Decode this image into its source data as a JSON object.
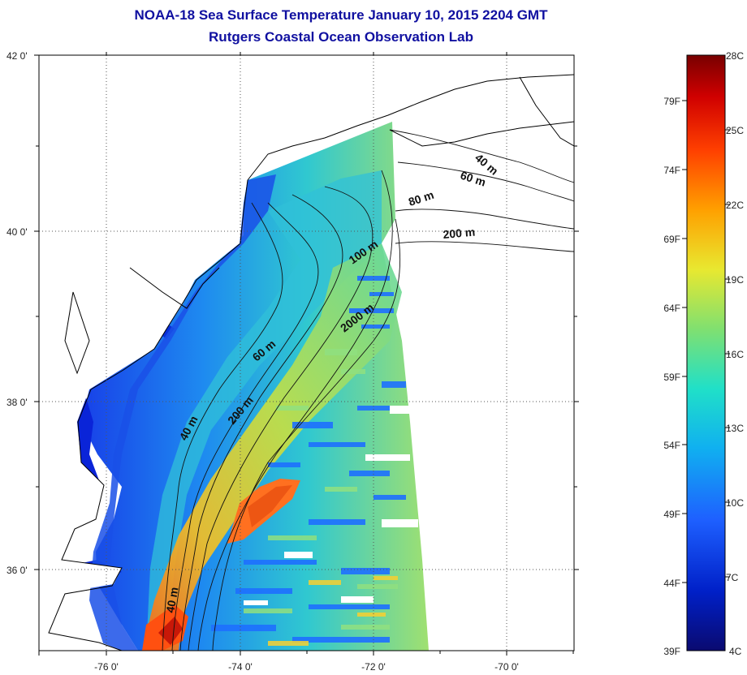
{
  "title": "NOAA-18 Sea Surface Temperature January 10, 2015 2204 GMT",
  "subtitle": "Rutgers Coastal Ocean Observation Lab",
  "lat_labels": [
    "42 0'",
    "40 0'",
    "38 0'",
    "36 0'"
  ],
  "lon_labels": [
    "-76 0'",
    "-74 0'",
    "-72 0'",
    "-70 0'"
  ],
  "contour_labels": [
    "40 m",
    "60 m",
    "80 m",
    "200 m",
    "100 m",
    "2000 m",
    "60 m",
    "200 m",
    "40 m",
    "40 m"
  ],
  "colorbar": {
    "celsius": [
      "28C",
      "25C",
      "22C",
      "19C",
      "16C",
      "13C",
      "10C",
      "7C",
      "4C"
    ],
    "fahrenheit": [
      "79F",
      "74F",
      "69F",
      "64F",
      "59F",
      "54F",
      "49F",
      "44F",
      "39F"
    ],
    "colors": [
      "#7f0000",
      "#d40000",
      "#ff4000",
      "#ff9900",
      "#f0e020",
      "#a6e050",
      "#40e0a0",
      "#10c8e8",
      "#1e90ff",
      "#1040e0",
      "#0010a8"
    ]
  },
  "colors": {
    "title": "#1010a0",
    "land": "#ffffff",
    "nodata": "#ffffff"
  }
}
